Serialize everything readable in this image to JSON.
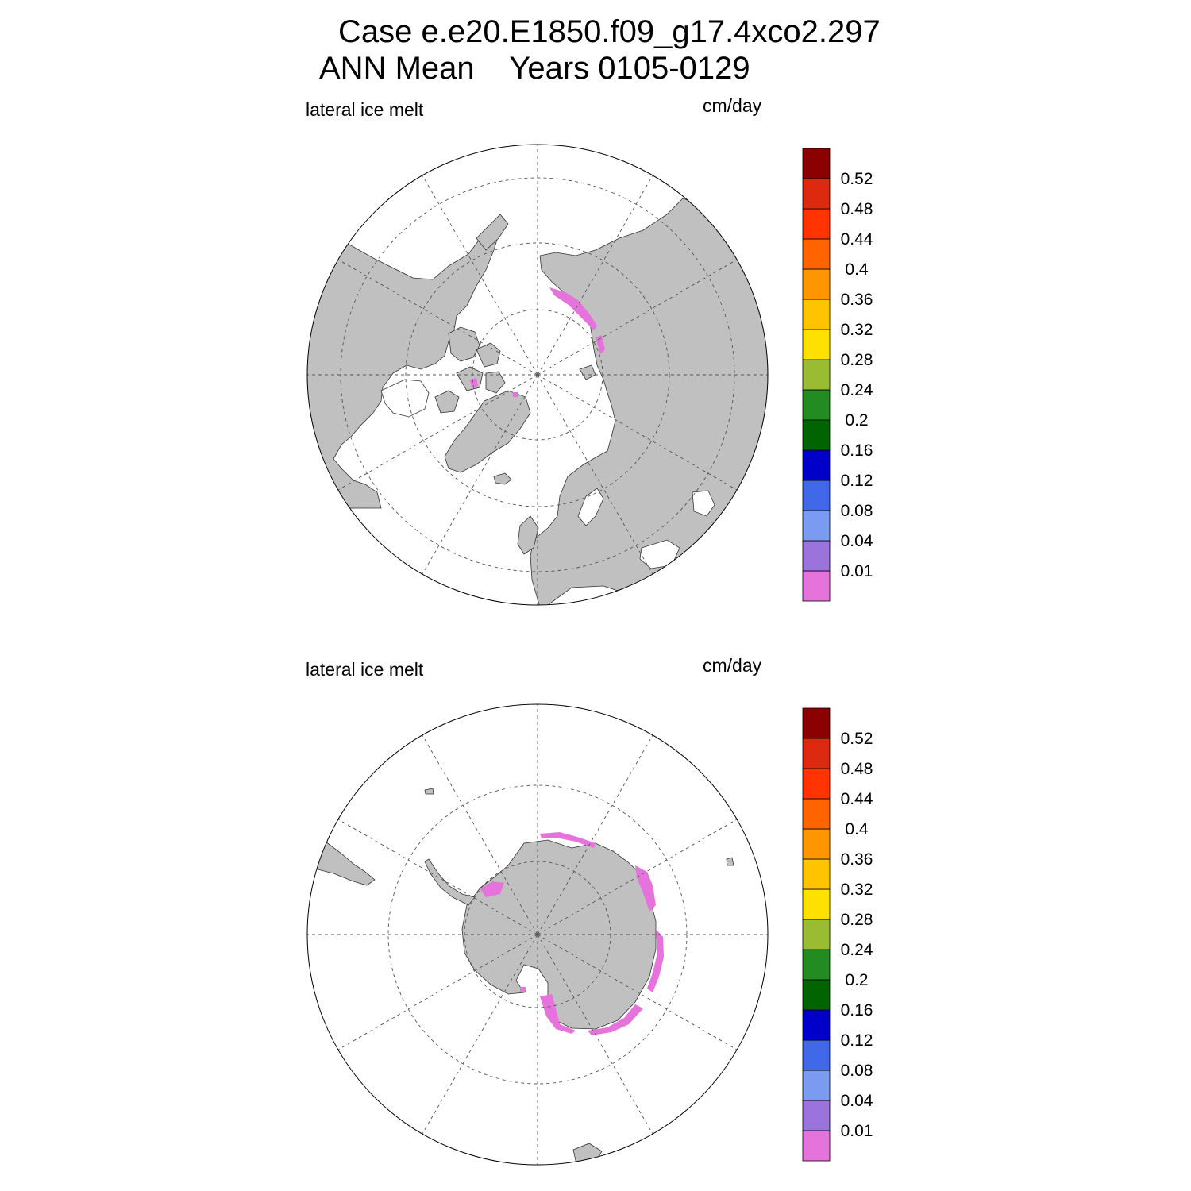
{
  "header": {
    "case_line": "Case e.e20.E1850.f09_g17.4xco2.297",
    "period_line": "ANN Mean    Years 0105-0129"
  },
  "colorbar": {
    "levels": [
      "0.01",
      "0.04",
      "0.08",
      "0.12",
      "0.16",
      "0.2",
      "0.24",
      "0.28",
      "0.32",
      "0.36",
      "0.4",
      "0.44",
      "0.48",
      "0.52"
    ],
    "colors": [
      "#e673dc",
      "#9a73dc",
      "#7b9bf2",
      "#4068e8",
      "#0000c8",
      "#006400",
      "#228b22",
      "#9abc32",
      "#ffe100",
      "#ffc300",
      "#ff9500",
      "#ff6400",
      "#ff3400",
      "#dc2a10",
      "#8b0000"
    ]
  },
  "panels": [
    {
      "id": "north",
      "hemisphere": "Northern Hemisphere",
      "variable_label": "lateral ice melt",
      "units_label": "cm/day",
      "land_color": "#c0c0c0"
    },
    {
      "id": "south",
      "hemisphere": "Southern Hemisphere",
      "variable_label": "lateral ice melt",
      "units_label": "cm/day",
      "land_color": "#c0c0c0"
    }
  ]
}
